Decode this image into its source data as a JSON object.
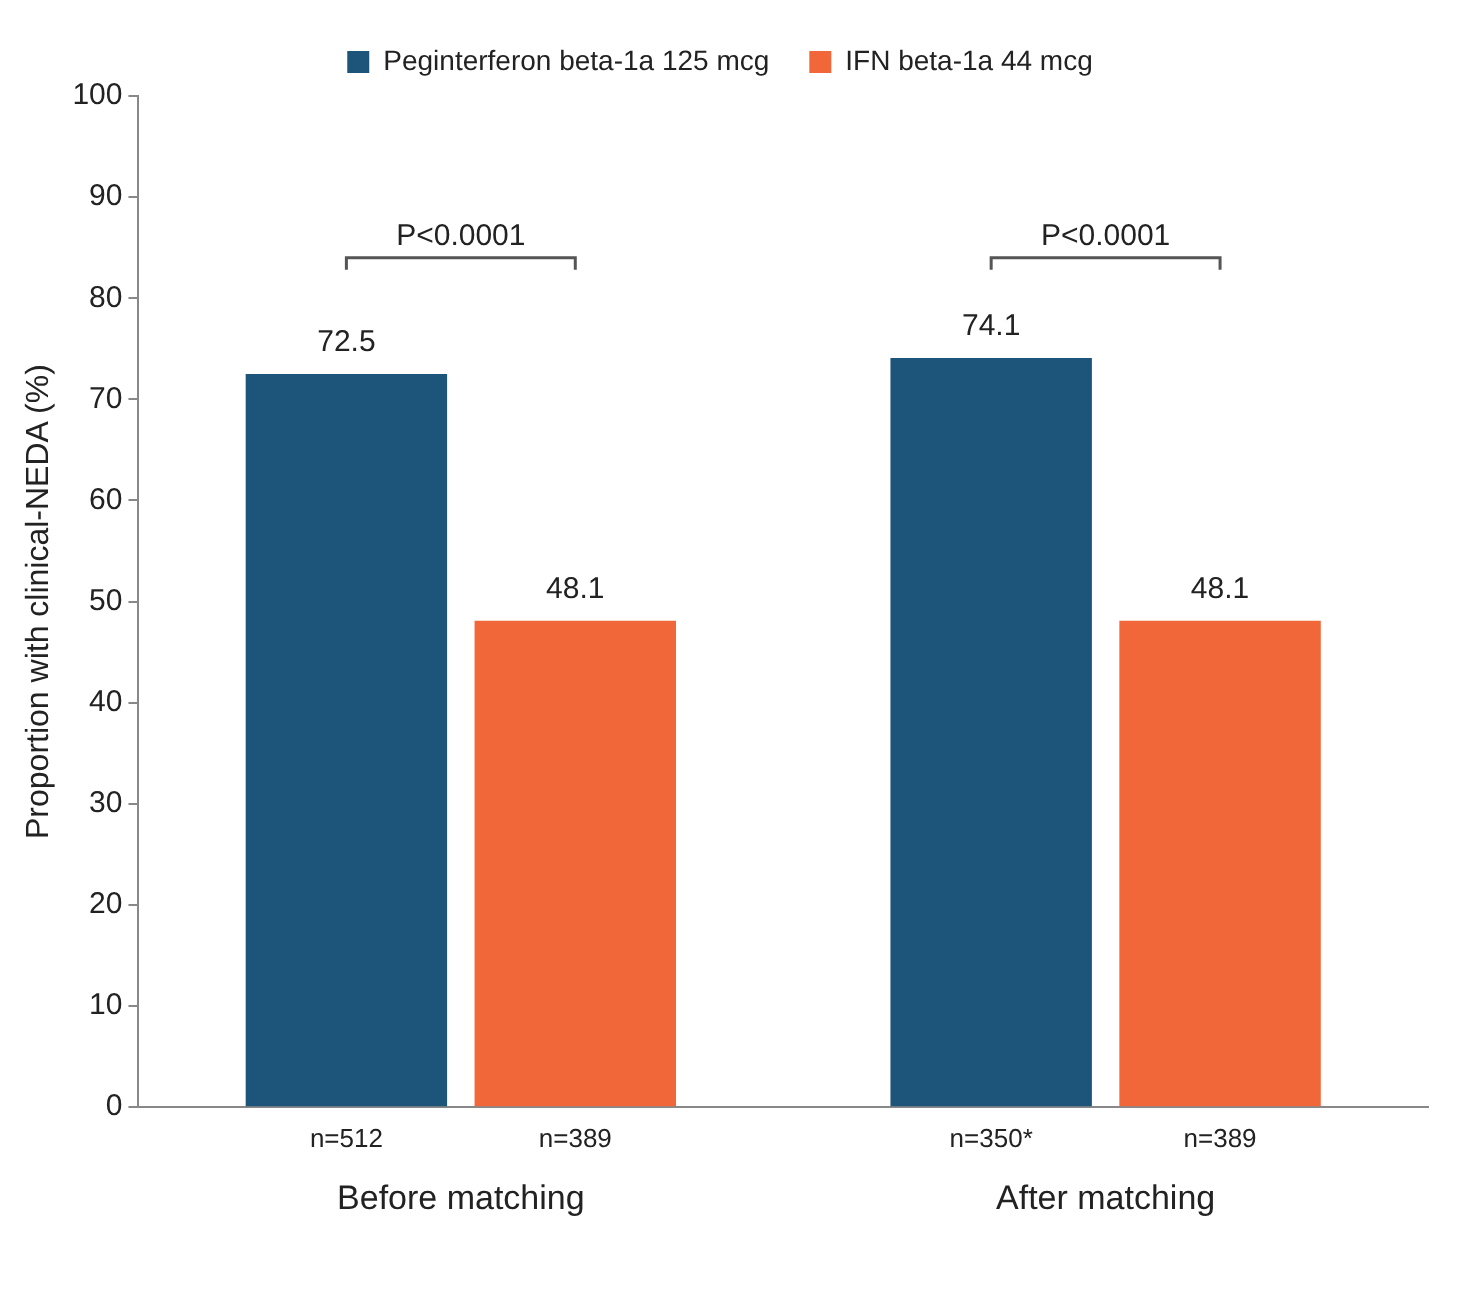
{
  "chart_data": {
    "type": "bar",
    "ylabel": "Proportion with clinical-NEDA (%)",
    "categories": [
      "Before matching",
      "After matching"
    ],
    "series": [
      {
        "name": "Peginterferon beta-1a 125 mcg",
        "color": "#1d5479",
        "values": [
          72.5,
          74.1
        ]
      },
      {
        "name": "IFN beta-1a 44 mcg",
        "color": "#f2673a",
        "values": [
          48.1,
          48.1
        ]
      }
    ],
    "ylim": [
      0,
      100
    ],
    "yticks": [
      0,
      10,
      20,
      30,
      40,
      50,
      60,
      70,
      80,
      90,
      100
    ],
    "grid": false,
    "legend": "top",
    "data_labels": true,
    "annotations": [
      "P<0.0001",
      "P<0.0001",
      "n=512",
      "n=389",
      "n=350*",
      "n=389"
    ]
  }
}
